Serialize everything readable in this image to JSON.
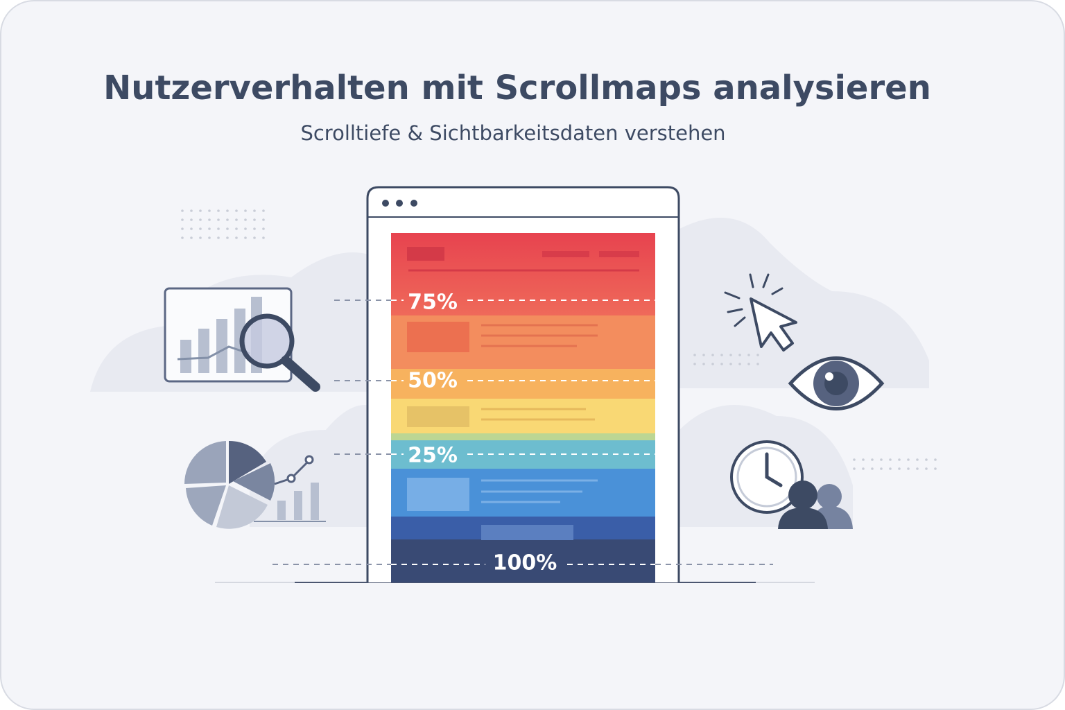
{
  "header": {
    "title": "Nutzerverhalten mit Scrollmaps analysieren",
    "subtitle": "Scrolltiefe & Sichtbarkeitsdaten verstehen"
  },
  "scrollmap": {
    "markers": [
      "75%",
      "50%",
      "25%",
      "100%"
    ]
  }
}
